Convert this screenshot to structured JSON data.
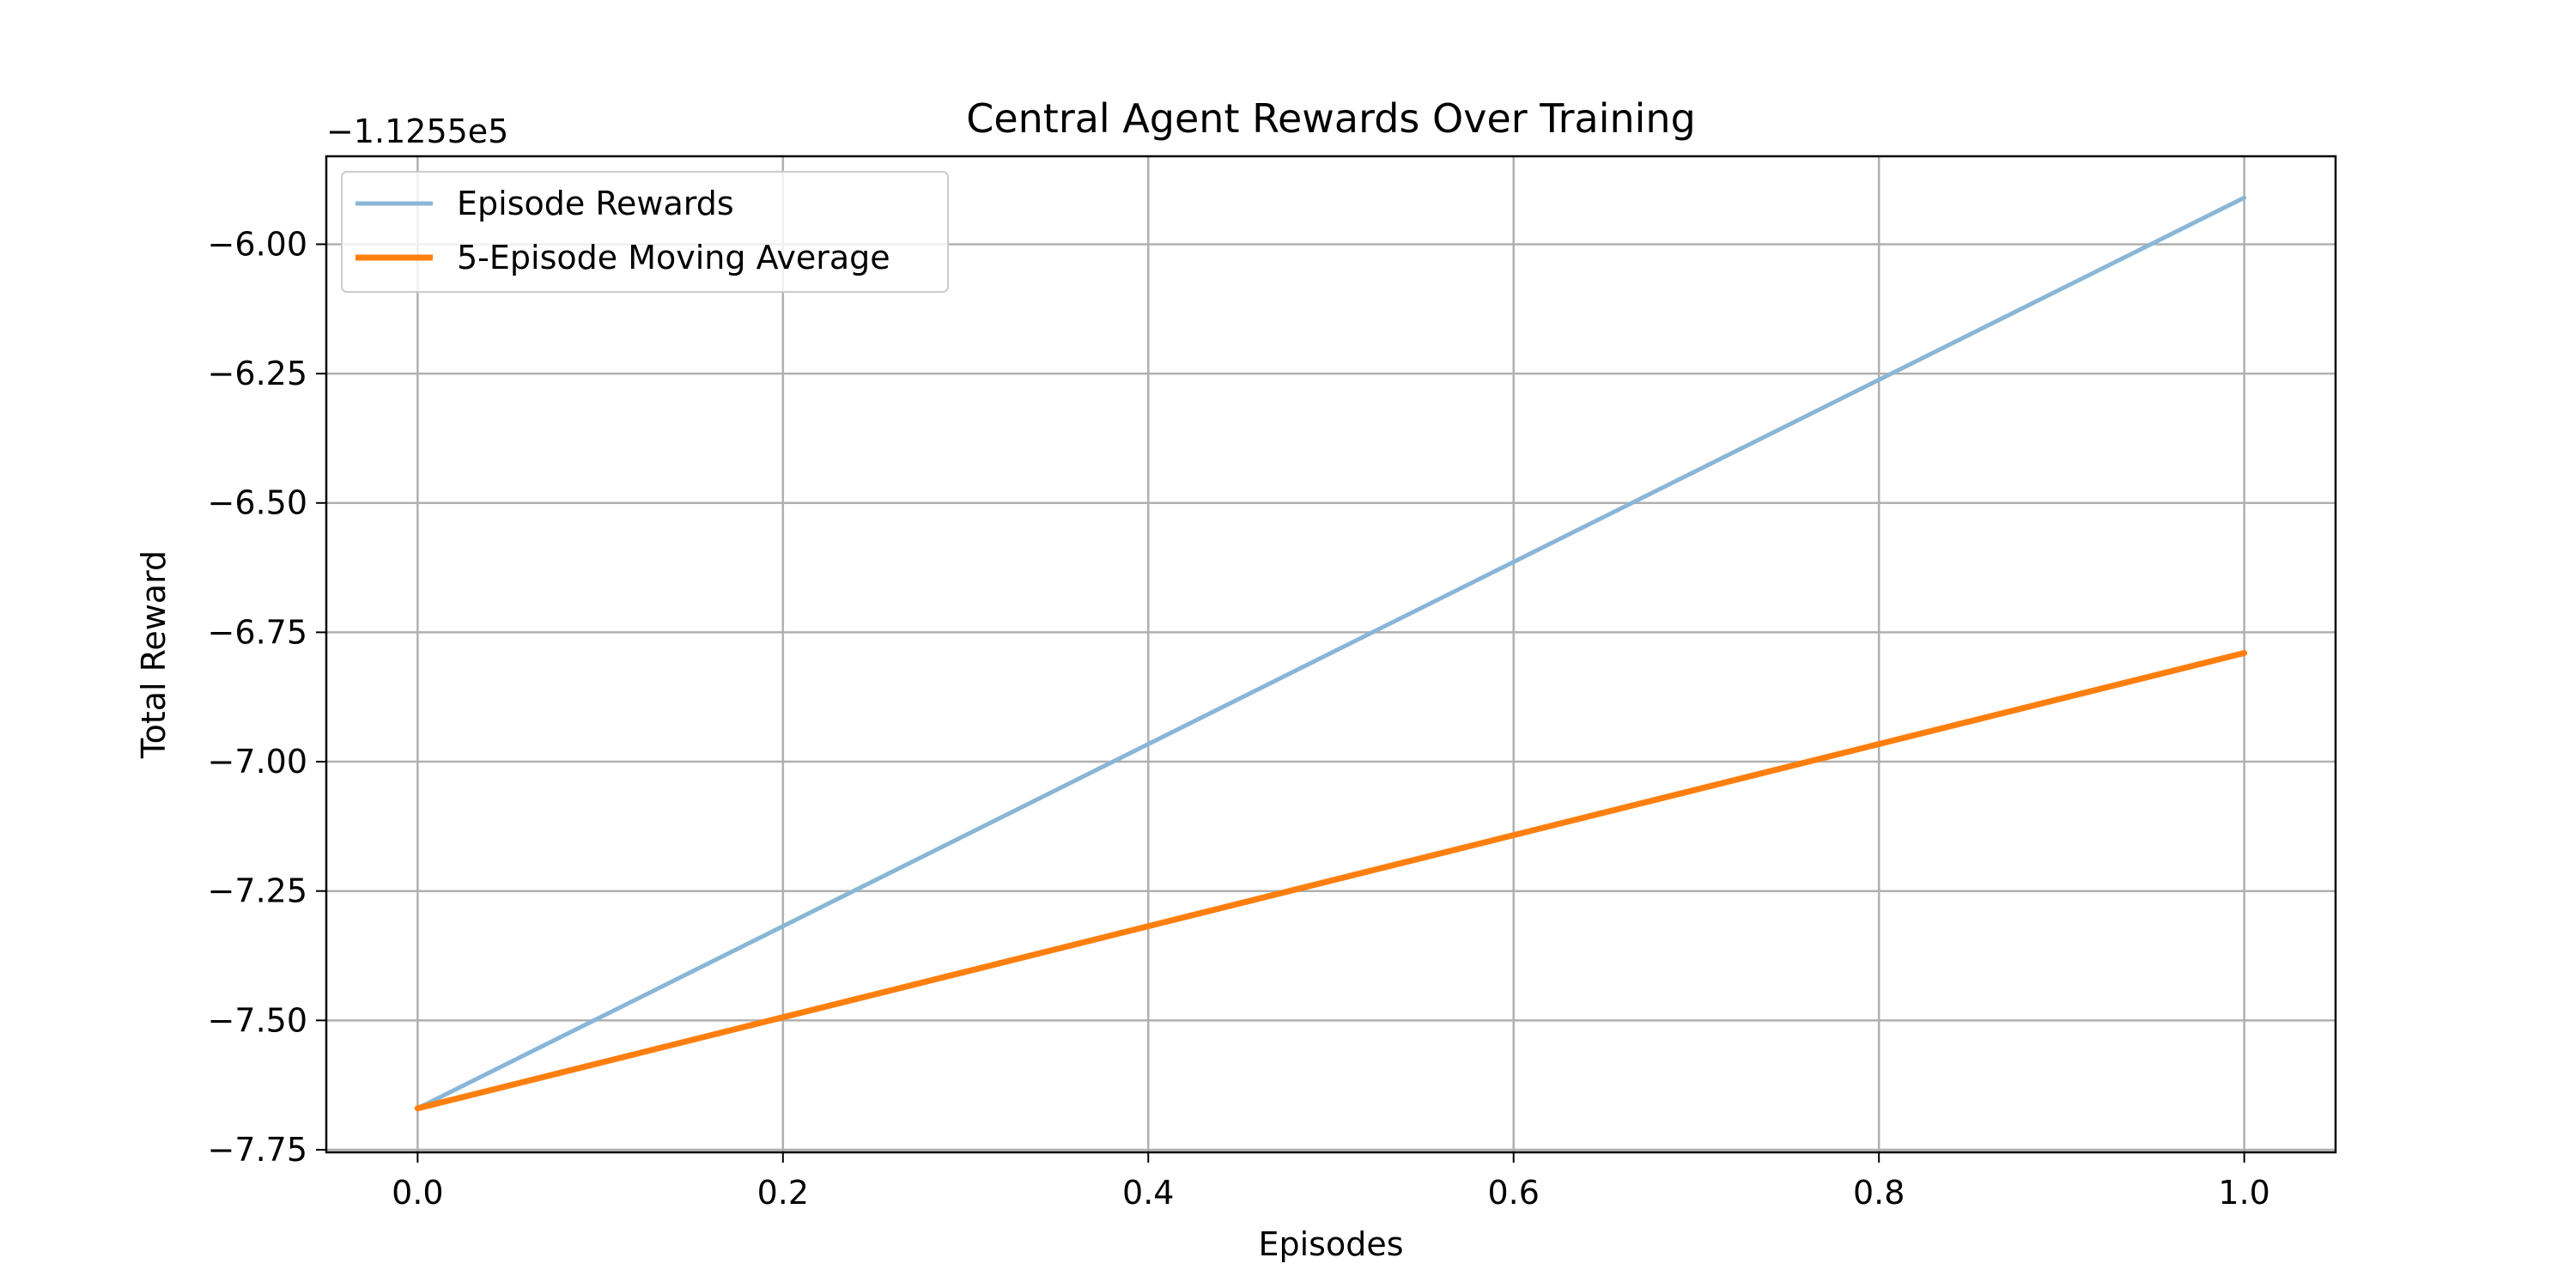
{
  "chart_data": {
    "type": "line",
    "title": "Central Agent Rewards Over Training",
    "xlabel": "Episodes",
    "ylabel": "Total Reward",
    "y_offset_label": "−1.1255e5",
    "x_ticks": [
      "0.0",
      "0.2",
      "0.4",
      "0.6",
      "0.8",
      "1.0"
    ],
    "y_ticks": [
      "−6.00",
      "−6.25",
      "−6.50",
      "−6.75",
      "−7.00",
      "−7.25",
      "−7.50",
      "−7.75"
    ],
    "x_tick_values": [
      0.0,
      0.2,
      0.4,
      0.6,
      0.8,
      1.0
    ],
    "y_tick_values": [
      -6.0,
      -6.25,
      -6.5,
      -6.75,
      -7.0,
      -7.25,
      -7.5,
      -7.75
    ],
    "xlim": [
      -0.05,
      1.05
    ],
    "ylim": [
      -7.755,
      -5.83
    ],
    "grid": true,
    "legend_position": "upper left",
    "series": [
      {
        "name": "Episode Rewards",
        "x": [
          0,
          1
        ],
        "y": [
          -7.67,
          -5.91
        ],
        "color": "#8ab6d6"
      },
      {
        "name": "5-Episode Moving Average",
        "x": [
          0,
          1
        ],
        "y": [
          -7.67,
          -6.79
        ],
        "color": "#ff7f0e"
      }
    ]
  }
}
